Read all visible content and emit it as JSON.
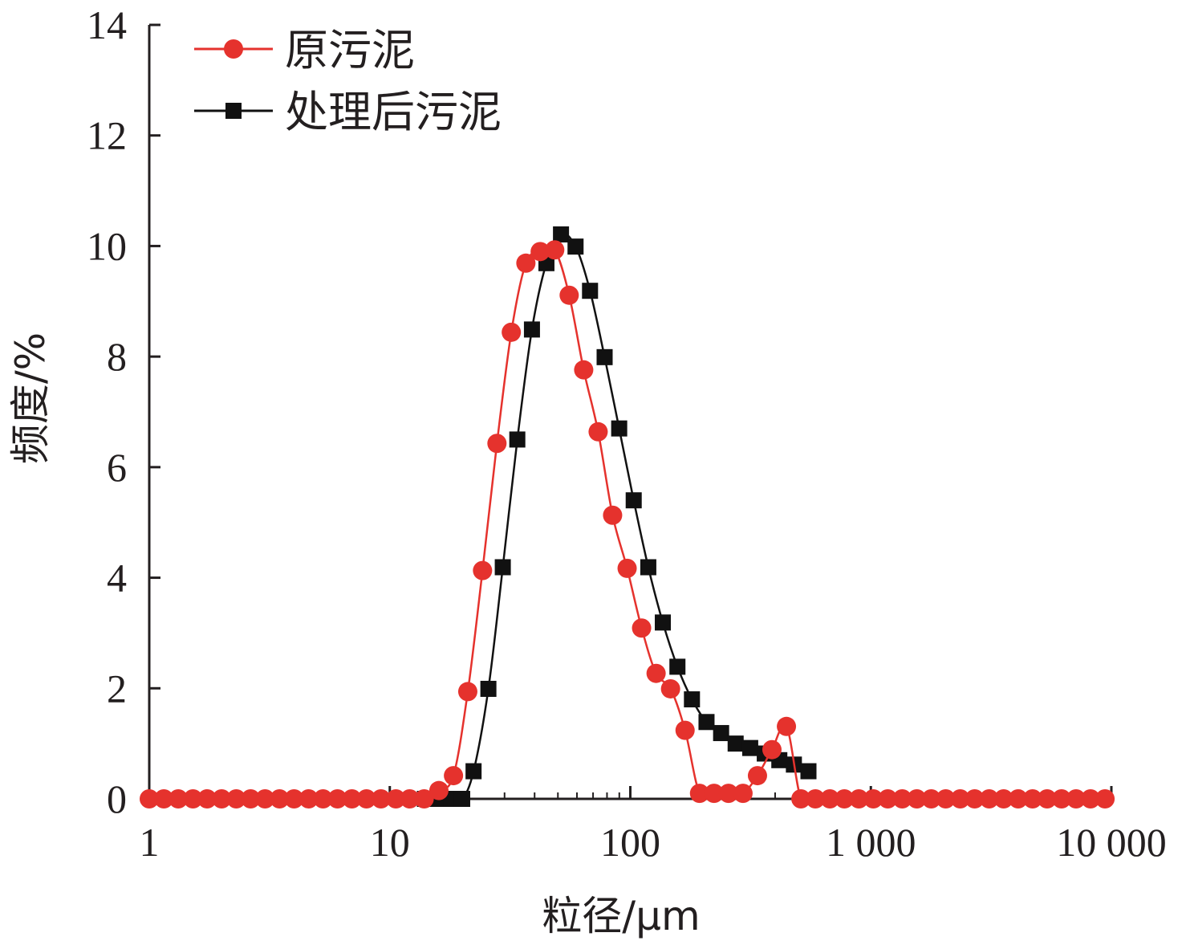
{
  "colors": {
    "axis": "#231f20",
    "red": "#e5322d",
    "black": "#111111"
  },
  "chart_data": {
    "type": "line",
    "xscale": "log",
    "xlim": [
      1,
      10000
    ],
    "ylim": [
      0,
      14
    ],
    "xlabel": "粒径/μm",
    "ylabel": "频度/%",
    "x_ticks": [
      1,
      10,
      100,
      1000,
      10000
    ],
    "x_tick_labels": [
      "1",
      "10",
      "100",
      "1 000",
      "10 000"
    ],
    "y_ticks": [
      0,
      2,
      4,
      6,
      8,
      10,
      12,
      14
    ],
    "y_tick_labels": [
      "0",
      "2",
      "4",
      "6",
      "8",
      "10",
      "12",
      "14"
    ],
    "legend_position": "top-left",
    "series": [
      {
        "name": "原污泥",
        "marker": "circle",
        "color": "#e5322d",
        "points": [
          [
            1.0,
            0.0
          ],
          [
            1.15,
            0.0
          ],
          [
            1.32,
            0.0
          ],
          [
            1.52,
            0.0
          ],
          [
            1.74,
            0.0
          ],
          [
            2.0,
            0.0
          ],
          [
            2.3,
            0.0
          ],
          [
            2.64,
            0.0
          ],
          [
            3.03,
            0.0
          ],
          [
            3.48,
            0.0
          ],
          [
            4.0,
            0.0
          ],
          [
            4.6,
            0.0
          ],
          [
            5.28,
            0.0
          ],
          [
            6.06,
            0.0
          ],
          [
            6.96,
            0.0
          ],
          [
            8.0,
            0.0
          ],
          [
            9.19,
            0.0
          ],
          [
            10.6,
            0.0
          ],
          [
            12.1,
            0.0
          ],
          [
            13.9,
            0.0
          ],
          [
            16.0,
            0.15
          ],
          [
            18.4,
            0.42
          ],
          [
            21.1,
            1.94
          ],
          [
            24.3,
            4.13
          ],
          [
            27.9,
            6.43
          ],
          [
            32.0,
            8.44
          ],
          [
            36.8,
            9.69
          ],
          [
            42.2,
            9.9
          ],
          [
            48.5,
            9.93
          ],
          [
            55.7,
            9.11
          ],
          [
            64.0,
            7.76
          ],
          [
            73.5,
            6.64
          ],
          [
            84.4,
            5.13
          ],
          [
            97.0,
            4.17
          ],
          [
            111.4,
            3.09
          ],
          [
            128.0,
            2.27
          ],
          [
            147.0,
            1.99
          ],
          [
            168.9,
            1.24
          ],
          [
            194.0,
            0.1
          ],
          [
            222.9,
            0.1
          ],
          [
            256.0,
            0.1
          ],
          [
            294.1,
            0.1
          ],
          [
            337.8,
            0.42
          ],
          [
            388.0,
            0.89
          ],
          [
            445.7,
            1.31
          ],
          [
            512.0,
            0.0
          ],
          [
            588.1,
            0.0
          ],
          [
            675.6,
            0.0
          ],
          [
            776.0,
            0.0
          ],
          [
            891.4,
            0.0
          ],
          [
            1024,
            0.0
          ],
          [
            1176,
            0.0
          ],
          [
            1351,
            0.0
          ],
          [
            1552,
            0.0
          ],
          [
            1783,
            0.0
          ],
          [
            2048,
            0.0
          ],
          [
            2353,
            0.0
          ],
          [
            2702,
            0.0
          ],
          [
            3104,
            0.0
          ],
          [
            3566,
            0.0
          ],
          [
            4096,
            0.0
          ],
          [
            4705,
            0.0
          ],
          [
            5405,
            0.0
          ],
          [
            6208,
            0.0
          ],
          [
            7132,
            0.0
          ],
          [
            8192,
            0.0
          ],
          [
            9410,
            0.0
          ]
        ]
      },
      {
        "name": "处理后污泥",
        "marker": "square",
        "color": "#111111",
        "points": [
          [
            14.0,
            0.0
          ],
          [
            16.0,
            0.0
          ],
          [
            18.0,
            0.0
          ],
          [
            20.0,
            0.0
          ],
          [
            22.3,
            0.5
          ],
          [
            25.7,
            1.99
          ],
          [
            29.5,
            4.19
          ],
          [
            33.9,
            6.5
          ],
          [
            39.0,
            8.49
          ],
          [
            44.8,
            9.69
          ],
          [
            51.5,
            10.21
          ],
          [
            59.2,
            9.99
          ],
          [
            68.0,
            9.19
          ],
          [
            78.2,
            7.99
          ],
          [
            89.9,
            6.7
          ],
          [
            103.3,
            5.4
          ],
          [
            118.8,
            4.19
          ],
          [
            136.5,
            3.19
          ],
          [
            157.0,
            2.39
          ],
          [
            180.4,
            1.8
          ],
          [
            207.4,
            1.39
          ],
          [
            238.5,
            1.19
          ],
          [
            274.1,
            1.0
          ],
          [
            315.1,
            0.92
          ],
          [
            362.2,
            0.82
          ],
          [
            416.4,
            0.7
          ],
          [
            478.7,
            0.62
          ],
          [
            550.3,
            0.5
          ]
        ]
      }
    ]
  }
}
